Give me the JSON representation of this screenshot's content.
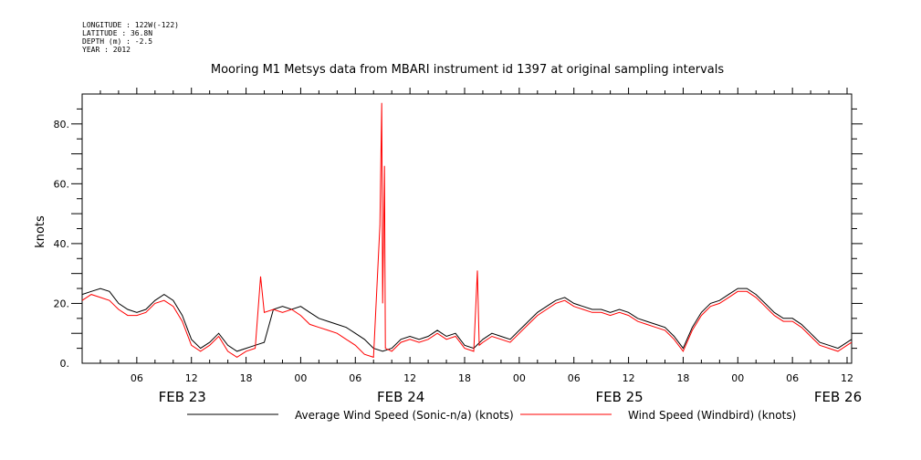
{
  "header": {
    "longitude": "LONGITUDE : 122W(-122)",
    "latitude": "LATITUDE : 36.8N",
    "depth": "DEPTH (m) : -2.5",
    "year": "YEAR : 2012"
  },
  "chart_data": {
    "type": "line",
    "title": "Mooring M1 Metsys data from MBARI instrument id 1397 at original sampling intervals",
    "ylabel": "knots",
    "xlabel": "",
    "ylim": [
      0,
      90
    ],
    "yticks": [
      0,
      20,
      40,
      60,
      80
    ],
    "ytick_labels": [
      "0.",
      "20.",
      "40.",
      "60.",
      "80."
    ],
    "xlim_hours": [
      0,
      84.5
    ],
    "xticks": [
      {
        "hour": 6,
        "label": "06"
      },
      {
        "hour": 12,
        "label": "12"
      },
      {
        "hour": 18,
        "label": "18"
      },
      {
        "hour": 24,
        "label": "00"
      },
      {
        "hour": 30,
        "label": "06"
      },
      {
        "hour": 36,
        "label": "12"
      },
      {
        "hour": 42,
        "label": "18"
      },
      {
        "hour": 48,
        "label": "00"
      },
      {
        "hour": 54,
        "label": "06"
      },
      {
        "hour": 60,
        "label": "12"
      },
      {
        "hour": 66,
        "label": "18"
      },
      {
        "hour": 72,
        "label": "00"
      },
      {
        "hour": 78,
        "label": "06"
      },
      {
        "hour": 84,
        "label": "12"
      }
    ],
    "day_labels": [
      {
        "hour": 11,
        "label": "FEB 23"
      },
      {
        "hour": 35,
        "label": "FEB 24"
      },
      {
        "hour": 59,
        "label": "FEB 25"
      },
      {
        "hour": 83,
        "label": "FEB 26"
      }
    ],
    "grid": false,
    "legend_position": "bottom",
    "series": [
      {
        "name": "Average Wind Speed (Sonic-n/a) (knots)",
        "color": "#000000",
        "x": [
          0,
          1,
          2,
          3,
          4,
          5,
          6,
          7,
          8,
          9,
          10,
          11,
          12,
          13,
          14,
          15,
          16,
          17,
          18,
          19,
          20,
          21,
          22,
          23,
          24,
          25,
          26,
          27,
          28,
          29,
          30,
          31,
          32,
          33,
          34,
          35,
          36,
          37,
          38,
          39,
          40,
          41,
          42,
          43,
          44,
          45,
          46,
          47,
          48,
          49,
          50,
          51,
          52,
          53,
          54,
          55,
          56,
          57,
          58,
          59,
          60,
          61,
          62,
          63,
          64,
          65,
          66,
          67,
          68,
          69,
          70,
          71,
          72,
          73,
          74,
          75,
          76,
          77,
          78,
          79,
          80,
          81,
          82,
          83,
          84,
          84.5
        ],
        "y": [
          23,
          24,
          25,
          24,
          20,
          18,
          17,
          18,
          21,
          23,
          21,
          16,
          8,
          5,
          7,
          10,
          6,
          4,
          5,
          6,
          7,
          18,
          19,
          18,
          19,
          17,
          15,
          14,
          13,
          12,
          10,
          8,
          5,
          4,
          5,
          8,
          9,
          8,
          9,
          11,
          9,
          10,
          6,
          5,
          8,
          10,
          9,
          8,
          11,
          14,
          17,
          19,
          21,
          22,
          20,
          19,
          18,
          18,
          17,
          18,
          17,
          15,
          14,
          13,
          12,
          9,
          5,
          12,
          17,
          20,
          21,
          23,
          25,
          25,
          23,
          20,
          17,
          15,
          15,
          13,
          10,
          7,
          6,
          5,
          7,
          8
        ]
      },
      {
        "name": "Wind Speed (Windbird) (knots)",
        "color": "#ff0000",
        "x": [
          0,
          1,
          2,
          3,
          4,
          5,
          6,
          7,
          8,
          9,
          10,
          11,
          12,
          13,
          14,
          15,
          16,
          17,
          18,
          19,
          19.6,
          20,
          21,
          22,
          23,
          24,
          25,
          26,
          27,
          28,
          29,
          30,
          31,
          32,
          32.7,
          32.9,
          33,
          33.2,
          33.3,
          34,
          35,
          36,
          37,
          38,
          39,
          40,
          41,
          42,
          43,
          43.4,
          43.6,
          44,
          45,
          46,
          47,
          48,
          49,
          50,
          51,
          52,
          53,
          54,
          55,
          56,
          57,
          58,
          59,
          60,
          61,
          62,
          63,
          64,
          65,
          66,
          67,
          68,
          69,
          70,
          71,
          72,
          73,
          74,
          75,
          76,
          77,
          78,
          79,
          80,
          81,
          82,
          83,
          84,
          84.5
        ],
        "y": [
          21,
          23,
          22,
          21,
          18,
          16,
          16,
          17,
          20,
          21,
          19,
          14,
          6,
          4,
          6,
          9,
          4,
          2,
          4,
          5,
          29,
          17,
          18,
          17,
          18,
          16,
          13,
          12,
          11,
          10,
          8,
          6,
          3,
          2,
          46,
          87,
          20,
          66,
          5,
          4,
          7,
          8,
          7,
          8,
          10,
          8,
          9,
          5,
          4,
          31,
          6,
          7,
          9,
          8,
          7,
          10,
          13,
          16,
          18,
          20,
          21,
          19,
          18,
          17,
          17,
          16,
          17,
          16,
          14,
          13,
          12,
          11,
          8,
          4,
          11,
          16,
          19,
          20,
          22,
          24,
          24,
          22,
          19,
          16,
          14,
          14,
          12,
          9,
          6,
          5,
          4,
          6,
          7
        ]
      }
    ]
  }
}
